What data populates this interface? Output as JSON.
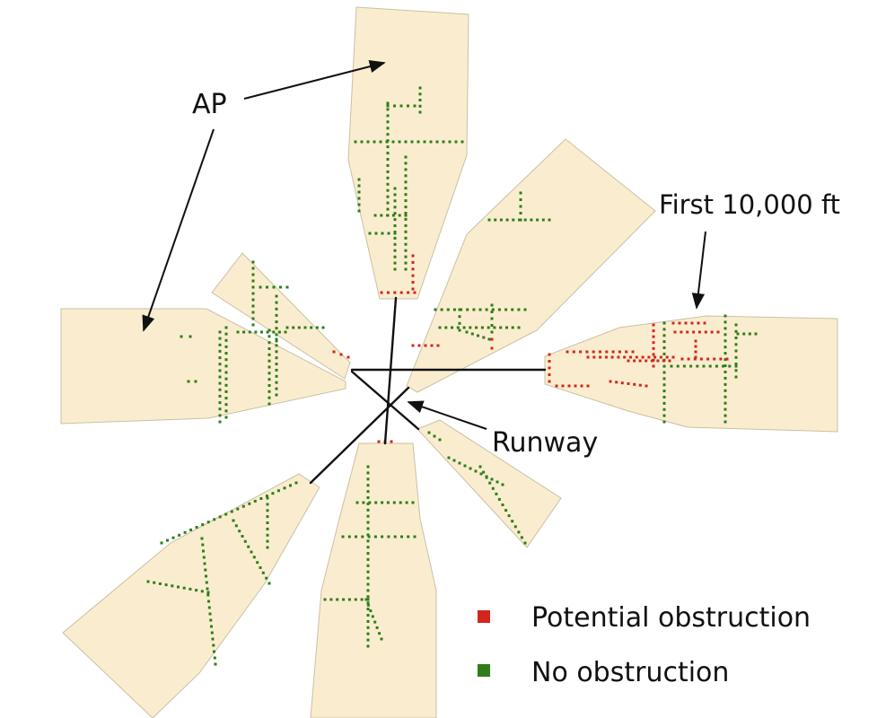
{
  "annotations": {
    "approach": "AP",
    "first_segment": "First 10,000 ft",
    "runway": "Runway"
  },
  "legend": {
    "potential_obstruction": "Potential obstruction",
    "no_obstruction": "No obstruction"
  },
  "colors": {
    "zone_fill": "#faedcf",
    "potential_obstruction": "#d3261c",
    "no_obstruction": "#2e7d19",
    "runway_line": "#111111"
  }
}
